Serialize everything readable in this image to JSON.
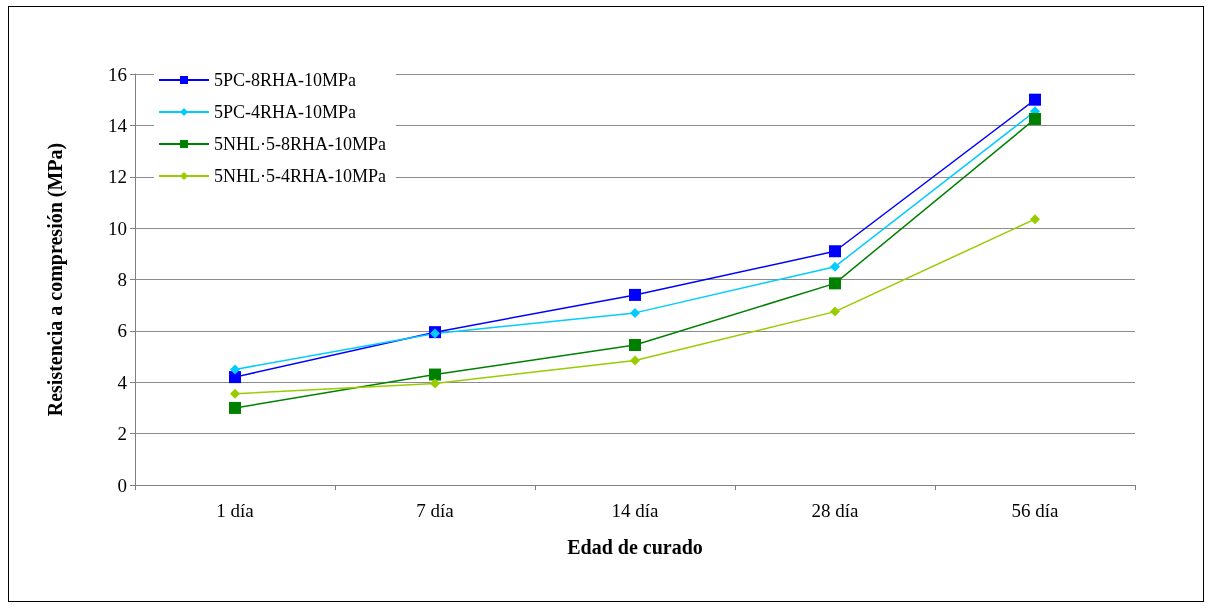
{
  "chart_data": {
    "type": "line",
    "xlabel": "Edad de curado",
    "ylabel": "Resistencia a compresión (MPa)",
    "categories": [
      "1 día",
      "7 día",
      "14 día",
      "28 día",
      "56 día"
    ],
    "ylim": [
      0,
      16
    ],
    "yticks": [
      0,
      2,
      4,
      6,
      8,
      10,
      12,
      14,
      16
    ],
    "grid": "y",
    "legend": "top left",
    "line_style": "solid",
    "series": [
      {
        "name": "5PC-8RHA-10MPa",
        "color": "#0000ff",
        "marker": "square",
        "values": [
          4.2,
          5.95,
          7.4,
          9.1,
          15.0
        ]
      },
      {
        "name": "5PC-4RHA-10MPa",
        "color": "#00ccff",
        "marker": "diamond",
        "values": [
          4.5,
          5.9,
          6.7,
          8.5,
          14.55
        ]
      },
      {
        "name": "5NHL·5-8RHA-10MPa",
        "color": "#008000",
        "marker": "square",
        "values": [
          3.0,
          4.3,
          5.45,
          7.85,
          14.25
        ]
      },
      {
        "name": "5NHL·5-4RHA-10MPa",
        "color": "#99cc00",
        "marker": "diamond",
        "values": [
          3.55,
          3.95,
          4.85,
          6.75,
          10.35
        ]
      }
    ]
  }
}
